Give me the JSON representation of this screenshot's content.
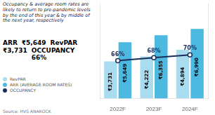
{
  "chart_data": {
    "type": "bar",
    "title": "Occupancy & average room rates are likely to return to pre-pandemic levels by the end of this year & by middle of the next year, respectively",
    "categories": [
      "2022F",
      "2023F",
      "2024F"
    ],
    "series": [
      {
        "name": "RevPAR",
        "color": "#aadcf0",
        "values": [
          3731,
          4222,
          4894
        ],
        "value_labels": [
          "₹3,731",
          "₹4,222",
          "₹4,894"
        ]
      },
      {
        "name": "ARR (AVERAGE ROOM RATES)",
        "color": "#4db8e0",
        "values": [
          5649,
          6355,
          6990
        ],
        "value_labels": [
          "₹5,649",
          "₹6,355",
          "₹6,990"
        ]
      },
      {
        "name": "OCCUPANCY",
        "type": "line",
        "axis": "y2",
        "color": "#1a2e5a",
        "marker": "circle",
        "values": [
          66,
          68,
          70
        ],
        "value_labels": [
          "66%",
          "68%",
          "70%"
        ]
      }
    ],
    "ylim": [
      0,
      9500
    ],
    "y2lim": [
      40,
      105
    ],
    "tick_labels": "x",
    "grid": false,
    "data_labels": true,
    "legend": "lower left",
    "annotations": [
      "ARR",
      "₹5,649",
      "RevPAR",
      "₹3,731",
      "OCCUPANCY\n66%"
    ],
    "source": "Source: HVS ANAROCK"
  }
}
